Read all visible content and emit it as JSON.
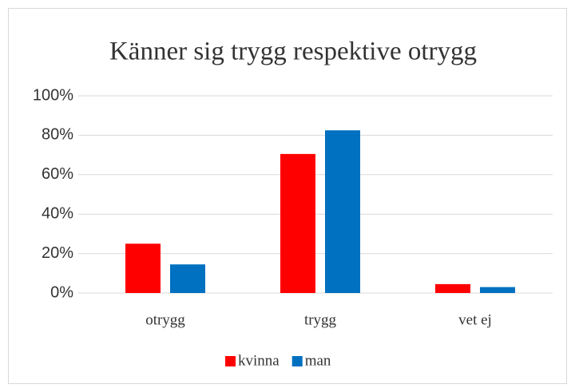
{
  "chart_data": {
    "type": "bar",
    "title": "Känner sig trygg respektive otrygg",
    "categories": [
      "otrygg",
      "trygg",
      "vet ej"
    ],
    "series": [
      {
        "name": "kvinna",
        "color": "#ff0000",
        "values": [
          25,
          70.5,
          4.5
        ]
      },
      {
        "name": "man",
        "color": "#0070c0",
        "values": [
          14.5,
          82.5,
          3
        ]
      }
    ],
    "ylim": [
      0,
      100
    ],
    "yticks": [
      {
        "value": 0,
        "label": "0%"
      },
      {
        "value": 20,
        "label": "20%"
      },
      {
        "value": 40,
        "label": "40%"
      },
      {
        "value": 60,
        "label": "60%"
      },
      {
        "value": 80,
        "label": "80%"
      },
      {
        "value": 100,
        "label": "100%"
      }
    ],
    "grid": true,
    "legend": "bottom"
  }
}
